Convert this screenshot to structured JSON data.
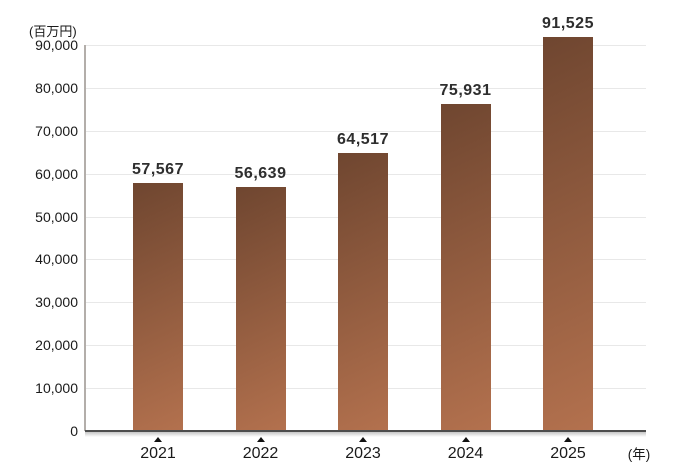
{
  "chart_data": {
    "type": "bar",
    "title": "",
    "y_unit_label": "(百万円)",
    "x_unit_label": "(年)",
    "categories": [
      "2021",
      "2022",
      "2023",
      "2024",
      "2025"
    ],
    "values": [
      57567,
      56639,
      64517,
      75931,
      91525
    ],
    "value_labels": [
      "57,567",
      "56,639",
      "64,517",
      "75,931",
      "91,525"
    ],
    "y_ticks": [
      0,
      10000,
      20000,
      30000,
      40000,
      50000,
      60000,
      70000,
      80000,
      90000
    ],
    "y_tick_labels": [
      "0",
      "10,000",
      "20,000",
      "30,000",
      "40,000",
      "50,000",
      "60,000",
      "70,000",
      "80,000",
      "90,000"
    ],
    "ylim": [
      0,
      90000
    ],
    "xlabel": "",
    "ylabel": "",
    "grid": "horizontal",
    "legend": "none",
    "category_marker_icon": "triangle-up",
    "colors": {
      "bar_gradient_top": "#6f4630",
      "bar_gradient_bottom": "#b3714e",
      "grid_line": "#e8e8e8",
      "y_axis_line": "#b3aeaa",
      "x_axis_line": "#4d4d4d",
      "text": "#1a1a1a",
      "value_text": "#2e2e2e",
      "background": "#ffffff"
    }
  }
}
